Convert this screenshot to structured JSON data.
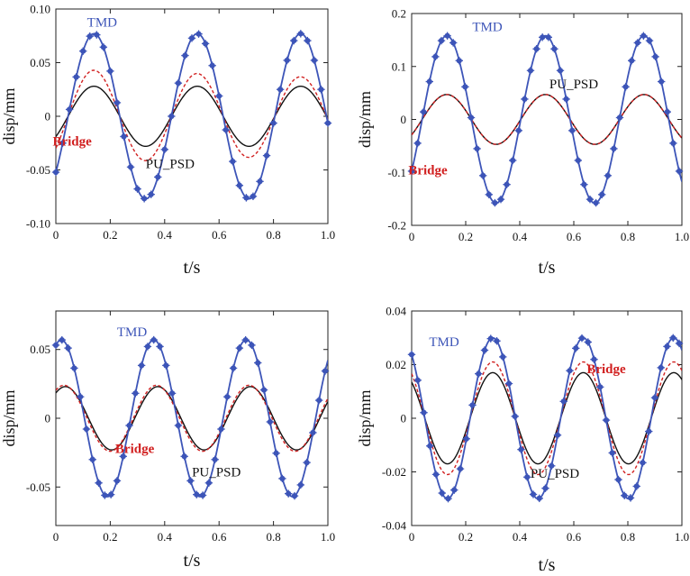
{
  "colors": {
    "tmd": "#3d55b8",
    "bridge": "#d12020",
    "pu_psd": "#111111",
    "axis": "#222222"
  },
  "chart_data": [
    {
      "type": "line",
      "panel": "top-left",
      "xlabel": "t/s",
      "ylabel": "disp/mm",
      "xlim": [
        0,
        1.0
      ],
      "ylim": [
        -0.1,
        0.1
      ],
      "xticks": [
        "0",
        "0.2",
        "0.4",
        "0.6",
        "0.8",
        "1.0"
      ],
      "yticks": [
        {
          "value": -0.1,
          "label": "-0.10"
        },
        {
          "value": -0.05,
          "label": "-0.05"
        },
        {
          "value": 0,
          "label": "0"
        },
        {
          "value": 0.05,
          "label": "0.05"
        },
        {
          "value": 0.1,
          "label": "0.10"
        }
      ],
      "series": [
        {
          "name": "TMD",
          "style": "solid-markers",
          "amplitude": 0.077,
          "period": 0.38,
          "peak_time": 0.14,
          "marker_interval": 0.025
        },
        {
          "name": "Bridge",
          "style": "dashed",
          "amplitude": 0.044,
          "period": 0.38,
          "peak_time": 0.14,
          "amplitude_end": 0.036
        },
        {
          "name": "PU_PSD",
          "style": "solid",
          "amplitude": 0.028,
          "period": 0.38,
          "peak_time": 0.14
        }
      ],
      "annotations": [
        {
          "series": "TMD",
          "text": "TMD",
          "x": 0.17,
          "y": 0.088
        },
        {
          "series": "Bridge",
          "text": "Bridge",
          "x": 0.06,
          "y": -0.023
        },
        {
          "series": "PU_PSD",
          "text": "PU_PSD",
          "x": 0.42,
          "y": -0.044
        }
      ]
    },
    {
      "type": "line",
      "panel": "top-right",
      "xlabel": "t/s",
      "ylabel": "disp/mm",
      "xlim": [
        0,
        1.0
      ],
      "ylim": [
        -0.2,
        0.2
      ],
      "xticks": [
        "0",
        "0.2",
        "0.4",
        "0.6",
        "0.8",
        "1.0"
      ],
      "yticks": [
        {
          "value": -0.2,
          "label": "-0.2"
        },
        {
          "value": -0.1,
          "label": "-0.1"
        },
        {
          "value": 0,
          "label": "0"
        },
        {
          "value": 0.1,
          "label": "0.1"
        },
        {
          "value": 0.2,
          "label": "0.2"
        }
      ],
      "series": [
        {
          "name": "TMD",
          "style": "solid-markers",
          "amplitude": 0.158,
          "period": 0.365,
          "peak_time": 0.13,
          "marker_interval": 0.022
        },
        {
          "name": "Bridge",
          "style": "dashed",
          "amplitude": 0.047,
          "period": 0.365,
          "peak_time": 0.13
        },
        {
          "name": "PU_PSD",
          "style": "solid",
          "amplitude": 0.047,
          "period": 0.365,
          "peak_time": 0.13
        }
      ],
      "annotations": [
        {
          "series": "TMD",
          "text": "TMD",
          "x": 0.28,
          "y": 0.175
        },
        {
          "series": "Bridge",
          "text": "Bridge",
          "x": 0.06,
          "y": -0.095
        },
        {
          "series": "PU_PSD",
          "text": "PU_PSD",
          "x": 0.6,
          "y": 0.067
        }
      ]
    },
    {
      "type": "line",
      "panel": "bottom-left",
      "xlabel": "t/s",
      "ylabel": "disp/mm",
      "xlim": [
        0,
        1.0
      ],
      "ylim": [
        -0.078,
        0.078
      ],
      "xticks": [
        "0",
        "0.2",
        "0.4",
        "0.6",
        "0.8",
        "1.0"
      ],
      "yticks": [
        {
          "value": -0.05,
          "label": "-0.05"
        },
        {
          "value": 0,
          "label": "0"
        },
        {
          "value": 0.05,
          "label": "0.05"
        }
      ],
      "series": [
        {
          "name": "TMD",
          "style": "solid-markers",
          "amplitude": 0.057,
          "period": 0.34,
          "peak_time": 0.02,
          "marker_interval": 0.0225
        },
        {
          "name": "Bridge",
          "style": "dashed",
          "amplitude": 0.024,
          "period": 0.34,
          "peak_time": 0.03
        },
        {
          "name": "PU_PSD",
          "style": "solid",
          "amplitude": 0.023,
          "period": 0.34,
          "peak_time": 0.035
        }
      ],
      "annotations": [
        {
          "series": "TMD",
          "text": "TMD",
          "x": 0.28,
          "y": 0.063
        },
        {
          "series": "Bridge",
          "text": "Bridge",
          "x": 0.29,
          "y": -0.022
        },
        {
          "series": "PU_PSD",
          "text": "PU_PSD",
          "x": 0.59,
          "y": -0.039
        }
      ]
    },
    {
      "type": "line",
      "panel": "bottom-right",
      "xlabel": "t/s",
      "ylabel": "disp/mm",
      "xlim": [
        0,
        1.0
      ],
      "ylim": [
        -0.04,
        0.04
      ],
      "xticks": [
        "0",
        "0.2",
        "0.4",
        "0.6",
        "0.8",
        "1.0"
      ],
      "yticks": [
        {
          "value": -0.04,
          "label": "-0.04"
        },
        {
          "value": -0.02,
          "label": "-0.02"
        },
        {
          "value": 0,
          "label": "0"
        },
        {
          "value": 0.02,
          "label": "0.02"
        },
        {
          "value": 0.04,
          "label": "0.04"
        }
      ],
      "series": [
        {
          "name": "TMD",
          "style": "solid-markers",
          "amplitude": 0.03,
          "period": 0.335,
          "peak_time": 0.3,
          "marker_interval": 0.0225
        },
        {
          "name": "Bridge",
          "style": "dashed",
          "amplitude": 0.021,
          "period": 0.335,
          "peak_time": 0.3
        },
        {
          "name": "PU_PSD",
          "style": "solid",
          "amplitude": 0.017,
          "period": 0.335,
          "peak_time": 0.3
        }
      ],
      "annotations": [
        {
          "series": "TMD",
          "text": "TMD",
          "x": 0.12,
          "y": 0.0285
        },
        {
          "series": "Bridge",
          "text": "Bridge",
          "x": 0.72,
          "y": 0.0185
        },
        {
          "series": "PU_PSD",
          "text": "PU_PSD",
          "x": 0.53,
          "y": -0.0205
        }
      ]
    }
  ]
}
